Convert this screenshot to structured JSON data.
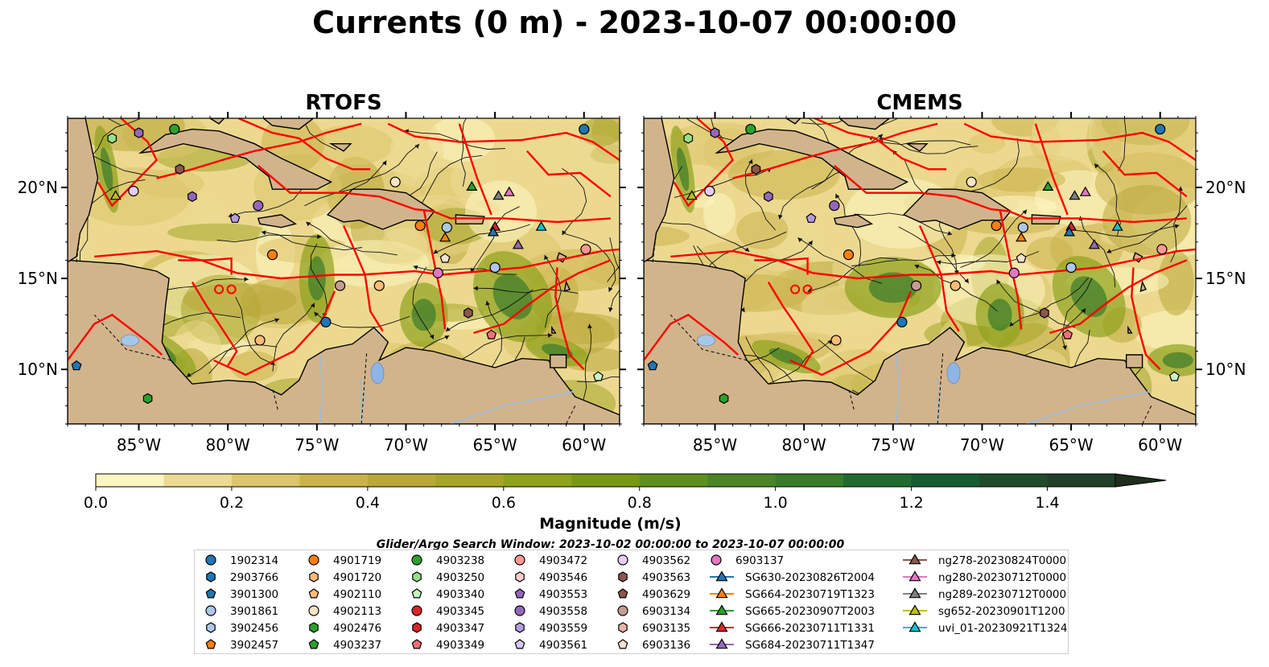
{
  "title": "Currents (0 m) - 2023-10-07 00:00:00",
  "panels": [
    {
      "title": "RTOFS",
      "variant": "rtofs"
    },
    {
      "title": "CMEMS",
      "variant": "cmems"
    }
  ],
  "map": {
    "lon_range": [
      -89.0,
      -58.0
    ],
    "lat_range": [
      7.0,
      23.8
    ],
    "lon_ticks": [
      -85,
      -80,
      -75,
      -70,
      -65,
      -60
    ],
    "lon_tick_labels": [
      "85°W",
      "80°W",
      "75°W",
      "70°W",
      "65°W",
      "60°W"
    ],
    "lat_ticks": [
      10,
      15,
      20
    ],
    "lat_tick_labels": [
      "10°N",
      "15°N",
      "20°N"
    ],
    "land_color": "#d2b48c",
    "boundary_color": "#ff0000"
  },
  "colorbar": {
    "label": "Magnitude (m/s)",
    "vmin": 0.0,
    "vmax": 1.5,
    "extend": "max",
    "ticks": [
      0.0,
      0.2,
      0.4,
      0.6,
      0.8,
      1.0,
      1.2,
      1.4
    ],
    "tick_labels": [
      "0.0",
      "0.2",
      "0.4",
      "0.6",
      "0.8",
      "1.0",
      "1.2",
      "1.4"
    ],
    "colors": [
      "#fdf6c3",
      "#eddb94",
      "#dcc56c",
      "#cbb34c",
      "#b9a83a",
      "#a6a52a",
      "#8ea21c",
      "#799915",
      "#5f8f1f",
      "#4c8427",
      "#3a7a2b",
      "#216a31",
      "#175c30",
      "#1f4d2b",
      "#213f26",
      "#1f2e1d"
    ]
  },
  "legend": {
    "title": "Glider/Argo Search Window: 2023-10-02 00:00:00 to 2023-10-07 00:00:00",
    "columns": [
      [
        {
          "label": "1902314",
          "marker": "circle",
          "color": "#1f77b4"
        },
        {
          "label": "2903766",
          "marker": "hexagon",
          "color": "#1f77b4"
        },
        {
          "label": "3901300",
          "marker": "pentagon",
          "color": "#1f77b4"
        },
        {
          "label": "3901861",
          "marker": "circle",
          "color": "#aec7e8"
        },
        {
          "label": "3902456",
          "marker": "hexagon",
          "color": "#aec7e8"
        },
        {
          "label": "3902457",
          "marker": "pentagon",
          "color": "#ff7f0e"
        }
      ],
      [
        {
          "label": "4901719",
          "marker": "circle",
          "color": "#ff7f0e"
        },
        {
          "label": "4901720",
          "marker": "hexagon",
          "color": "#ffbb78"
        },
        {
          "label": "4902110",
          "marker": "pentagon",
          "color": "#ffbb78"
        },
        {
          "label": "4902113",
          "marker": "circle",
          "color": "#ffe4c4"
        },
        {
          "label": "4902476",
          "marker": "hexagon",
          "color": "#2ca02c"
        },
        {
          "label": "4903237",
          "marker": "pentagon",
          "color": "#2ca02c"
        }
      ],
      [
        {
          "label": "4903238",
          "marker": "circle",
          "color": "#2ca02c"
        },
        {
          "label": "4903250",
          "marker": "hexagon",
          "color": "#98df8a"
        },
        {
          "label": "4903340",
          "marker": "pentagon",
          "color": "#c7f5c0"
        },
        {
          "label": "4903345",
          "marker": "circle",
          "color": "#d62728"
        },
        {
          "label": "4903347",
          "marker": "hexagon",
          "color": "#d62728"
        },
        {
          "label": "4903349",
          "marker": "pentagon",
          "color": "#f0707a"
        }
      ],
      [
        {
          "label": "4903472",
          "marker": "circle",
          "color": "#ff9896"
        },
        {
          "label": "4903546",
          "marker": "hexagon",
          "color": "#ffcccc"
        },
        {
          "label": "4903553",
          "marker": "pentagon",
          "color": "#9467bd"
        },
        {
          "label": "4903558",
          "marker": "circle",
          "color": "#9467bd"
        },
        {
          "label": "4903559",
          "marker": "hexagon",
          "color": "#b49ddf"
        },
        {
          "label": "4903561",
          "marker": "pentagon",
          "color": "#d8c8f0"
        }
      ],
      [
        {
          "label": "4903562",
          "marker": "circle",
          "color": "#e8ccf5"
        },
        {
          "label": "4903563",
          "marker": "hexagon",
          "color": "#8c564b"
        },
        {
          "label": "4903629",
          "marker": "pentagon",
          "color": "#8c564b"
        },
        {
          "label": "6903134",
          "marker": "circle",
          "color": "#c49c94"
        },
        {
          "label": "6903135",
          "marker": "hexagon",
          "color": "#e8b4a4"
        },
        {
          "label": "6903136",
          "marker": "pentagon",
          "color": "#fde0d0"
        }
      ],
      [
        {
          "label": "6903137",
          "marker": "circle",
          "color": "#e377c2"
        },
        {
          "label": "SG630-20230826T2004",
          "marker": "triangle",
          "color": "#1f77b4"
        },
        {
          "label": "SG664-20230719T1323",
          "marker": "triangle",
          "color": "#ff7f0e"
        },
        {
          "label": "SG665-20230907T2003",
          "marker": "triangle",
          "color": "#2ca02c"
        },
        {
          "label": "SG666-20230711T1331",
          "marker": "triangle",
          "color": "#d62728"
        },
        {
          "label": "SG684-20230711T1347",
          "marker": "triangle",
          "color": "#9467bd"
        }
      ],
      [
        {
          "label": "ng278-20230824T0000",
          "marker": "triangle",
          "color": "#8c564b"
        },
        {
          "label": "ng280-20230712T0000",
          "marker": "triangle",
          "color": "#e377c2"
        },
        {
          "label": "ng289-20230712T0000",
          "marker": "triangle",
          "color": "#7f7f7f"
        },
        {
          "label": "sg652-20230901T1200",
          "marker": "triangle",
          "color": "#bcbd22"
        },
        {
          "label": "uvi_01-20230921T1324",
          "marker": "triangle",
          "color": "#17becf"
        }
      ]
    ]
  },
  "observations": [
    {
      "lon": -60.0,
      "lat": 23.2,
      "marker": "circle",
      "color": "#1f77b4"
    },
    {
      "lon": -83.0,
      "lat": 23.2,
      "marker": "circle",
      "color": "#2ca02c"
    },
    {
      "lon": -85.0,
      "lat": 23.0,
      "marker": "hexagon",
      "color": "#9467bd"
    },
    {
      "lon": -86.5,
      "lat": 22.7,
      "marker": "hexagon",
      "color": "#98df8a"
    },
    {
      "lon": -82.7,
      "lat": 21.0,
      "marker": "hexagon",
      "color": "#8c564b"
    },
    {
      "lon": -85.3,
      "lat": 19.8,
      "marker": "circle",
      "color": "#e8ccf5"
    },
    {
      "lon": -82.0,
      "lat": 19.5,
      "marker": "hexagon",
      "color": "#9467bd"
    },
    {
      "lon": -78.3,
      "lat": 19.0,
      "marker": "circle",
      "color": "#9467bd"
    },
    {
      "lon": -79.6,
      "lat": 18.3,
      "marker": "pentagon",
      "color": "#b49ddf"
    },
    {
      "lon": -70.6,
      "lat": 20.3,
      "marker": "circle",
      "color": "#ffe4c4"
    },
    {
      "lon": -69.2,
      "lat": 17.9,
      "marker": "circle",
      "color": "#ff7f0e"
    },
    {
      "lon": -67.7,
      "lat": 17.8,
      "marker": "circle",
      "color": "#aec7e8"
    },
    {
      "lon": -67.8,
      "lat": 16.1,
      "marker": "pentagon",
      "color": "#fde0d0"
    },
    {
      "lon": -68.2,
      "lat": 15.3,
      "marker": "circle",
      "color": "#e377c2"
    },
    {
      "lon": -77.5,
      "lat": 16.3,
      "marker": "circle",
      "color": "#ff7f0e"
    },
    {
      "lon": -73.7,
      "lat": 14.6,
      "marker": "circle",
      "color": "#c49c94"
    },
    {
      "lon": -71.5,
      "lat": 14.6,
      "marker": "circle",
      "color": "#ffbb78"
    },
    {
      "lon": -74.5,
      "lat": 12.6,
      "marker": "circle",
      "color": "#1f77b4"
    },
    {
      "lon": -65.0,
      "lat": 15.6,
      "marker": "circle",
      "color": "#aec7e8"
    },
    {
      "lon": -66.5,
      "lat": 13.1,
      "marker": "hexagon",
      "color": "#8c564b"
    },
    {
      "lon": -65.2,
      "lat": 11.9,
      "marker": "pentagon",
      "color": "#f0707a"
    },
    {
      "lon": -59.9,
      "lat": 16.6,
      "marker": "circle",
      "color": "#ff9896"
    },
    {
      "lon": -78.2,
      "lat": 11.6,
      "marker": "circle",
      "color": "#ffbb78"
    },
    {
      "lon": -88.5,
      "lat": 10.2,
      "marker": "pentagon",
      "color": "#1f77b4"
    },
    {
      "lon": -84.5,
      "lat": 8.4,
      "marker": "hexagon",
      "color": "#2ca02c"
    },
    {
      "lon": -59.2,
      "lat": 9.6,
      "marker": "pentagon",
      "color": "#c7f5c0"
    },
    {
      "lon": -66.3,
      "lat": 20.0,
      "marker": "triangle",
      "color": "#2ca02c"
    },
    {
      "lon": -64.8,
      "lat": 19.5,
      "marker": "triangle",
      "color": "#7f7f7f"
    },
    {
      "lon": -64.2,
      "lat": 19.7,
      "marker": "triangle",
      "color": "#e377c2"
    },
    {
      "lon": -86.3,
      "lat": 19.5,
      "marker": "triangle",
      "color": "#bcbd22"
    },
    {
      "lon": -67.8,
      "lat": 17.2,
      "marker": "triangle",
      "color": "#ff7f0e"
    },
    {
      "lon": -65.0,
      "lat": 17.8,
      "marker": "triangle",
      "color": "#d62728"
    },
    {
      "lon": -65.1,
      "lat": 17.5,
      "marker": "triangle",
      "color": "#1f77b4"
    },
    {
      "lon": -63.7,
      "lat": 16.8,
      "marker": "triangle",
      "color": "#9467bd"
    },
    {
      "lon": -62.4,
      "lat": 17.8,
      "marker": "triangle",
      "color": "#17becf"
    }
  ]
}
